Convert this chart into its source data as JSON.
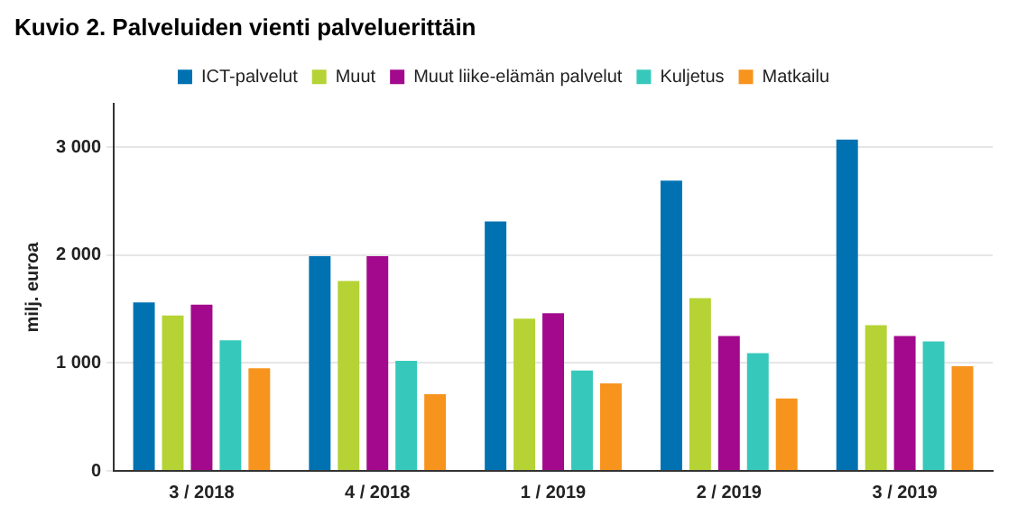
{
  "chart_data": {
    "type": "bar",
    "title": "Kuvio 2. Palveluiden vienti palveluerittäin",
    "ylabel": "milj. euroa",
    "categories": [
      "3 / 2018",
      "4 / 2018",
      "1 / 2019",
      "2 / 2019",
      "3 / 2019"
    ],
    "series": [
      {
        "name": "ICT-palvelut",
        "color": "#0072b2",
        "values": [
          1560,
          1990,
          2310,
          2690,
          3070
        ]
      },
      {
        "name": "Muut",
        "color": "#b5d334",
        "values": [
          1440,
          1760,
          1410,
          1600,
          1350
        ]
      },
      {
        "name": "Muut liike-elämän palvelut",
        "color": "#a3098c",
        "values": [
          1540,
          1990,
          1460,
          1250,
          1250
        ]
      },
      {
        "name": "Kuljetus",
        "color": "#36c9bb",
        "values": [
          1210,
          1020,
          930,
          1090,
          1200
        ]
      },
      {
        "name": "Matkailu",
        "color": "#f7941d",
        "values": [
          950,
          710,
          810,
          670,
          970
        ]
      }
    ],
    "ylim": [
      0,
      3400
    ],
    "yticks": [
      0,
      {
        "value": 1000,
        "label": "1 000"
      },
      {
        "value": 2000,
        "label": "2 000"
      },
      {
        "value": 3000,
        "label": "3 000"
      }
    ],
    "grid": "y",
    "legend": "top"
  }
}
